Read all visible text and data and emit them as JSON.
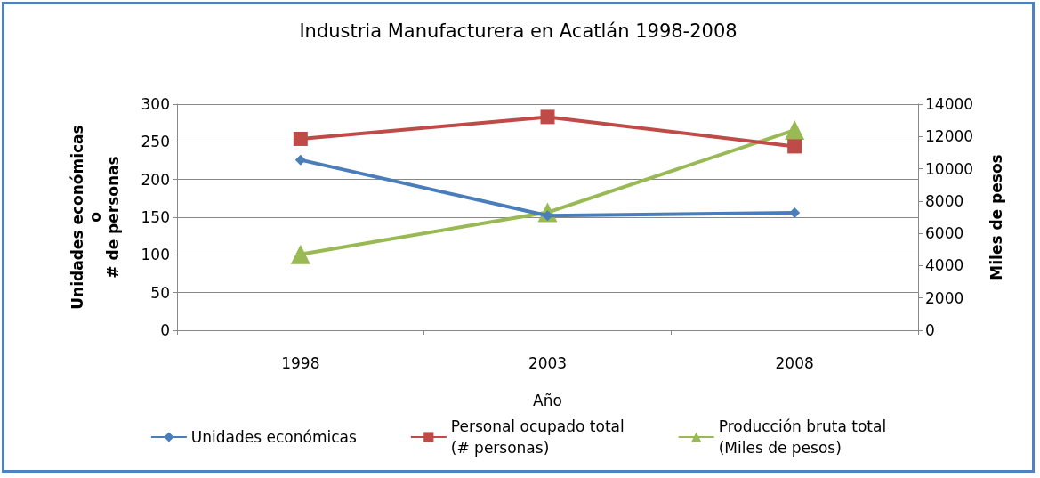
{
  "chart_data": {
    "type": "line",
    "title": "Industria Manufacturera en Acatlán 1998-2008",
    "xlabel": "Año",
    "ylabel": "Unidades económicas\no\n# de personas",
    "y2label": "Miles de pesos",
    "categories": [
      "1998",
      "2003",
      "2008"
    ],
    "series": [
      {
        "name": "Unidades económicas",
        "color": "#4a7ebb",
        "marker": "diamond",
        "values": [
          226,
          152,
          156
        ]
      },
      {
        "name": "Personal ocupado total\n(# personas)",
        "color": "#be4b48",
        "marker": "square",
        "values": [
          254,
          283,
          244
        ]
      },
      {
        "name": "Producción bruta total\n(Miles de pesos)",
        "color": "#98b954",
        "marker": "triangle",
        "axis": "y2",
        "values": [
          4700,
          7300,
          12400
        ]
      }
    ],
    "ylim": [
      0,
      300
    ],
    "yticks": [
      0,
      50,
      100,
      150,
      200,
      250,
      300
    ],
    "y2lim": [
      0,
      14000
    ],
    "y2ticks": [
      0,
      2000,
      4000,
      6000,
      8000,
      10000,
      12000,
      14000
    ],
    "grid": "y",
    "legend": "bottom"
  }
}
